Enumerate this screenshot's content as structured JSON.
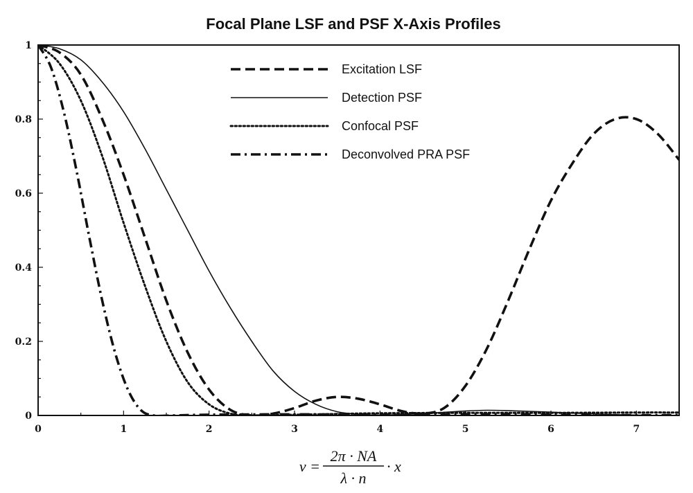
{
  "chart_data": {
    "type": "line",
    "title": "Focal Plane LSF and PSF X-Axis Profiles",
    "xlabel": {
      "lhs": "v =",
      "numerator": "2π · NA",
      "denominator": "λ · n",
      "rhs": "· x"
    },
    "ylabel": "",
    "xlim": [
      0,
      7.5
    ],
    "ylim": [
      0,
      1
    ],
    "xticks": [
      0,
      1,
      2,
      3,
      4,
      5,
      6,
      7
    ],
    "yticks": [
      0,
      0.2,
      0.4,
      0.6,
      0.8,
      1
    ],
    "ytick_labels": [
      "0",
      "0.2",
      "0.4",
      "0.6",
      "0.8",
      "1"
    ],
    "grid": false,
    "legend_position": "top-center",
    "series": [
      {
        "name": "Excitation LSF",
        "style": "dashed",
        "points": [
          [
            0,
            1
          ],
          [
            0.25,
            0.98
          ],
          [
            0.5,
            0.92
          ],
          [
            0.75,
            0.8
          ],
          [
            1,
            0.65
          ],
          [
            1.25,
            0.48
          ],
          [
            1.5,
            0.31
          ],
          [
            1.75,
            0.17
          ],
          [
            2,
            0.07
          ],
          [
            2.25,
            0.015
          ],
          [
            2.5,
            0
          ],
          [
            2.75,
            0.005
          ],
          [
            3,
            0.02
          ],
          [
            3.25,
            0.04
          ],
          [
            3.5,
            0.05
          ],
          [
            3.75,
            0.045
          ],
          [
            4,
            0.03
          ],
          [
            4.25,
            0.012
          ],
          [
            4.5,
            0.005
          ],
          [
            4.75,
            0.02
          ],
          [
            5,
            0.08
          ],
          [
            5.25,
            0.18
          ],
          [
            5.5,
            0.31
          ],
          [
            5.75,
            0.45
          ],
          [
            6,
            0.58
          ],
          [
            6.25,
            0.68
          ],
          [
            6.5,
            0.76
          ],
          [
            6.75,
            0.8
          ],
          [
            7,
            0.8
          ],
          [
            7.25,
            0.76
          ],
          [
            7.5,
            0.69
          ]
        ]
      },
      {
        "name": "Detection PSF",
        "style": "solid",
        "points": [
          [
            0,
            1
          ],
          [
            0.25,
            0.99
          ],
          [
            0.5,
            0.96
          ],
          [
            0.75,
            0.9
          ],
          [
            1,
            0.82
          ],
          [
            1.25,
            0.72
          ],
          [
            1.5,
            0.61
          ],
          [
            1.75,
            0.5
          ],
          [
            2,
            0.39
          ],
          [
            2.25,
            0.29
          ],
          [
            2.5,
            0.2
          ],
          [
            2.75,
            0.12
          ],
          [
            3,
            0.065
          ],
          [
            3.25,
            0.03
          ],
          [
            3.5,
            0.01
          ],
          [
            3.75,
            0.003
          ],
          [
            4,
            0.001
          ],
          [
            4.5,
            0.005
          ],
          [
            5,
            0.012
          ],
          [
            5.25,
            0.014
          ],
          [
            5.5,
            0.013
          ],
          [
            6,
            0.009
          ],
          [
            6.5,
            0.004
          ],
          [
            7,
            0.001
          ],
          [
            7.5,
            0
          ]
        ]
      },
      {
        "name": "Confocal PSF",
        "style": "dotted",
        "points": [
          [
            0,
            1
          ],
          [
            0.25,
            0.95
          ],
          [
            0.5,
            0.85
          ],
          [
            0.75,
            0.7
          ],
          [
            1,
            0.52
          ],
          [
            1.25,
            0.35
          ],
          [
            1.5,
            0.2
          ],
          [
            1.75,
            0.09
          ],
          [
            2,
            0.03
          ],
          [
            2.25,
            0.005
          ],
          [
            2.5,
            0
          ],
          [
            3,
            0.002
          ],
          [
            3.5,
            0.004
          ],
          [
            4,
            0.006
          ],
          [
            5,
            0.007
          ],
          [
            6,
            0.007
          ],
          [
            7,
            0.008
          ],
          [
            7.5,
            0.008
          ]
        ]
      },
      {
        "name": "Deconvolved PRA PSF",
        "style": "dashdot",
        "points": [
          [
            0,
            1
          ],
          [
            0.15,
            0.94
          ],
          [
            0.3,
            0.82
          ],
          [
            0.45,
            0.66
          ],
          [
            0.6,
            0.48
          ],
          [
            0.75,
            0.31
          ],
          [
            0.9,
            0.17
          ],
          [
            1.05,
            0.07
          ],
          [
            1.2,
            0.015
          ],
          [
            1.35,
            0
          ],
          [
            1.6,
            0
          ],
          [
            2,
            0.002
          ],
          [
            3,
            0.003
          ],
          [
            4,
            0.002
          ],
          [
            5,
            0.003
          ],
          [
            6,
            0.002
          ],
          [
            7,
            0.001
          ],
          [
            7.5,
            0.001
          ]
        ]
      }
    ]
  }
}
